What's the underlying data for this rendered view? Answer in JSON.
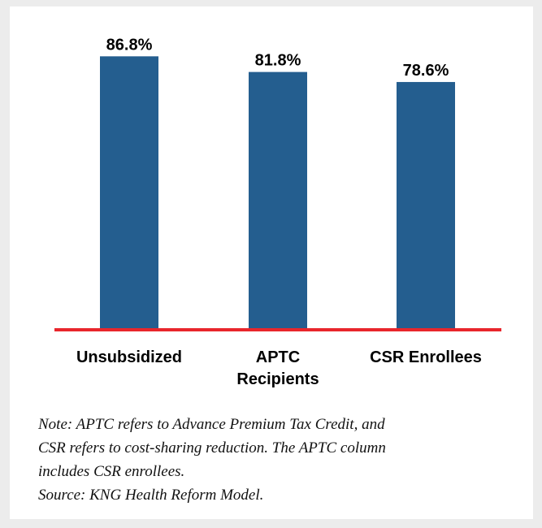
{
  "chart_data": {
    "type": "bar",
    "categories": [
      "Unsubsidized",
      "APTC Recipients",
      "CSR Enrollees"
    ],
    "category_label_lines": [
      [
        "Unsubsidized"
      ],
      [
        "APTC",
        "Recipients"
      ],
      [
        "CSR Enrollees"
      ]
    ],
    "values": [
      86.8,
      81.8,
      78.6
    ],
    "value_labels": [
      "86.8%",
      "81.8%",
      "78.6%"
    ],
    "ylim": [
      0,
      90
    ],
    "grid": false,
    "legend": "none",
    "colors": {
      "bar": "#245e8f",
      "baseline": "#e8262c"
    }
  },
  "footnote": {
    "lines": [
      "Note: APTC refers to Advance Premium Tax Credit, and",
      "CSR refers to cost-sharing reduction. The APTC column",
      "includes CSR enrollees.",
      "Source: KNG Health Reform Model."
    ]
  }
}
